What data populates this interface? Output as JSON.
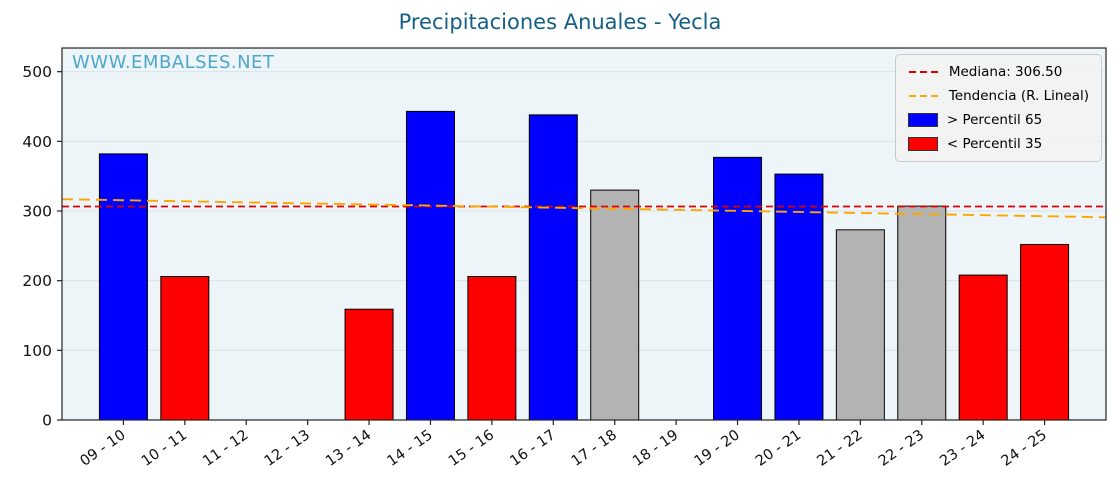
{
  "watermark": "WWW.EMBALSES.NET",
  "colors": {
    "title": "#156082",
    "watermark": "#4ea6cb",
    "plot_bg": "#eef5f9",
    "grid": "#d6e3ea",
    "axis": "#222222",
    "tick_label": "#111111",
    "median_line": "#dd0000",
    "trend_line": "#ffa500",
    "bar_blue": "#0000ff",
    "bar_red": "#ff0000",
    "bar_gray": "#b3b3b3",
    "bar_edge": "#000000"
  },
  "legend": [
    {
      "label": "Mediana: 306.50",
      "type": "dashed-line",
      "color": "#dd0000"
    },
    {
      "label": "Tendencia (R. Lineal)",
      "type": "dashed-line",
      "color": "#ffa500"
    },
    {
      "label": "> Percentil 65",
      "type": "box",
      "color": "#0000ff"
    },
    {
      "label": "< Percentil 35",
      "type": "box",
      "color": "#ff0000"
    }
  ],
  "chart_data": {
    "type": "bar",
    "title": "Precipitaciones Anuales - Yecla",
    "xlabel": "",
    "ylabel": "",
    "categories": [
      "09 - 10",
      "10 - 11",
      "11 - 12",
      "12 - 13",
      "13 - 14",
      "14 - 15",
      "15 - 16",
      "16 - 17",
      "17 - 18",
      "18 - 19",
      "19 - 20",
      "20 - 21",
      "21 - 22",
      "22 - 23",
      "23 - 24",
      "24 - 25"
    ],
    "values": [
      382,
      206,
      null,
      null,
      159,
      443,
      206,
      438,
      330,
      null,
      377,
      353,
      273,
      307,
      208,
      252
    ],
    "bar_colors": [
      "blue",
      "red",
      null,
      null,
      "red",
      "blue",
      "red",
      "blue",
      "gray",
      null,
      "blue",
      "blue",
      "gray",
      "gray",
      "red",
      "red"
    ],
    "median": 306.5,
    "trend_start": 317,
    "trend_end": 291,
    "ylim": [
      0,
      534
    ],
    "yticks": [
      0,
      100,
      200,
      300,
      400,
      500
    ],
    "grid": true,
    "legend_position": "top-right"
  }
}
